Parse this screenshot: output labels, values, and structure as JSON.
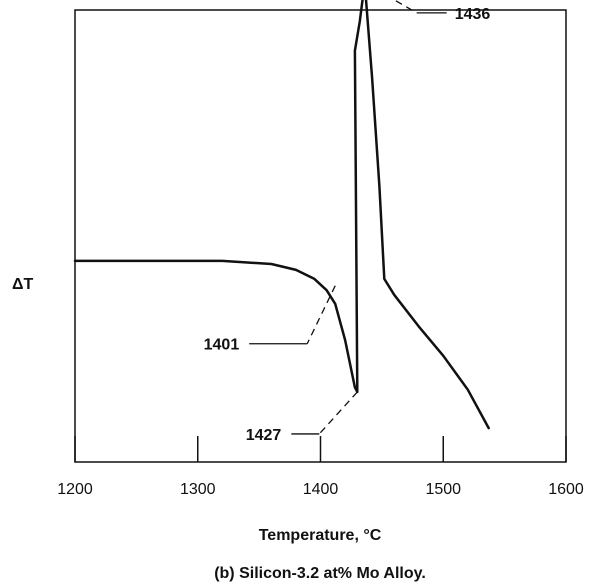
{
  "chart_data": {
    "type": "line",
    "title": "",
    "caption": "(b) Silicon-3.2 at% Mo Alloy.",
    "xlabel": "Temperature, °C",
    "ylabel": "ΔT",
    "xlim": [
      1200,
      1600
    ],
    "ylim": [
      0,
      10
    ],
    "x_ticks": [
      1200,
      1300,
      1400,
      1500,
      1600
    ],
    "y_ticks": [],
    "grid": false,
    "series": [
      {
        "x": [
          1200,
          1250,
          1320,
          1360,
          1380,
          1395,
          1405,
          1412,
          1420,
          1428,
          1430,
          1428,
          1432,
          1436,
          1442,
          1448,
          1452,
          1460,
          1480,
          1500,
          1520,
          1537
        ],
        "y": [
          4.45,
          4.45,
          4.45,
          4.38,
          4.25,
          4.05,
          3.8,
          3.5,
          2.7,
          1.65,
          1.55,
          9.1,
          9.75,
          10.6,
          8.5,
          6.1,
          4.05,
          3.7,
          3.0,
          2.35,
          1.6,
          0.75
        ]
      }
    ],
    "annotations": [
      {
        "label": "1401",
        "x": 1412,
        "y": 3.9
      },
      {
        "label": "1427",
        "x": 1430,
        "y": 1.55
      },
      {
        "label": "1436",
        "x": 1436,
        "y": 10.6
      }
    ]
  }
}
